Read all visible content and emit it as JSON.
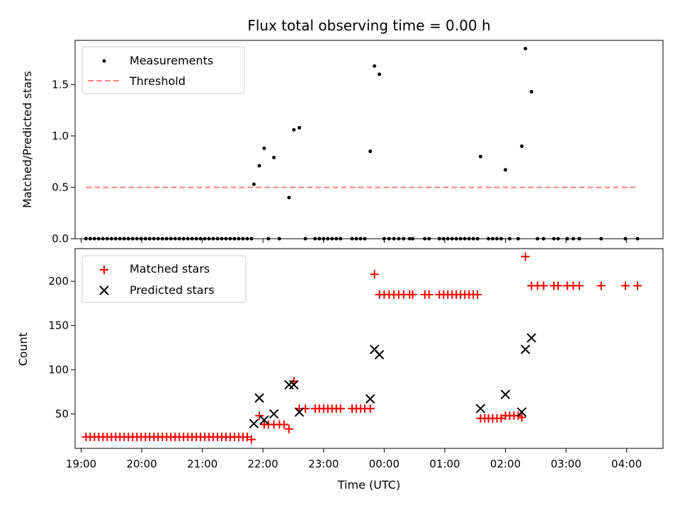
{
  "figure": {
    "title": "Flux total observing time = 0.00 h",
    "xlabel": "Time (UTC)"
  },
  "chart_data": [
    {
      "type": "scatter",
      "panel": "top",
      "ylabel": "Matched/Predicted stars",
      "xlim": [
        18.9,
        28.6
      ],
      "ylim": [
        0,
        1.93
      ],
      "yticks": [
        0.0,
        0.5,
        1.0,
        1.5
      ],
      "ytick_labels": [
        "0.0",
        "0.5",
        "1.0",
        "1.5"
      ],
      "xticks": [
        19,
        20,
        21,
        22,
        23,
        24,
        25,
        26,
        27,
        28
      ],
      "legend_position": "top-left",
      "grid": false,
      "series": [
        {
          "name": "Measurements",
          "marker": "dot",
          "color": "#000000",
          "points": [
            [
              19.08,
              0
            ],
            [
              19.15,
              0
            ],
            [
              19.22,
              0
            ],
            [
              19.29,
              0
            ],
            [
              19.36,
              0
            ],
            [
              19.43,
              0
            ],
            [
              19.5,
              0
            ],
            [
              19.57,
              0
            ],
            [
              19.64,
              0
            ],
            [
              19.71,
              0
            ],
            [
              19.78,
              0
            ],
            [
              19.85,
              0
            ],
            [
              19.92,
              0
            ],
            [
              19.99,
              0
            ],
            [
              20.06,
              0
            ],
            [
              20.13,
              0
            ],
            [
              20.2,
              0
            ],
            [
              20.27,
              0
            ],
            [
              20.34,
              0
            ],
            [
              20.41,
              0
            ],
            [
              20.48,
              0
            ],
            [
              20.55,
              0
            ],
            [
              20.62,
              0
            ],
            [
              20.69,
              0
            ],
            [
              20.76,
              0
            ],
            [
              20.83,
              0
            ],
            [
              20.9,
              0
            ],
            [
              20.97,
              0
            ],
            [
              21.04,
              0
            ],
            [
              21.11,
              0
            ],
            [
              21.18,
              0
            ],
            [
              21.25,
              0
            ],
            [
              21.32,
              0
            ],
            [
              21.39,
              0
            ],
            [
              21.46,
              0
            ],
            [
              21.53,
              0
            ],
            [
              21.6,
              0
            ],
            [
              21.67,
              0
            ],
            [
              21.74,
              0
            ],
            [
              21.81,
              0
            ],
            [
              21.85,
              0.53
            ],
            [
              21.94,
              0.71
            ],
            [
              22.02,
              0.88
            ],
            [
              22.09,
              0
            ],
            [
              22.18,
              0.79
            ],
            [
              22.27,
              0
            ],
            [
              22.43,
              0.4
            ],
            [
              22.51,
              1.06
            ],
            [
              22.6,
              1.08
            ],
            [
              22.7,
              0
            ],
            [
              22.86,
              0
            ],
            [
              22.93,
              0
            ],
            [
              23.0,
              0
            ],
            [
              23.07,
              0
            ],
            [
              23.14,
              0
            ],
            [
              23.21,
              0
            ],
            [
              23.28,
              0
            ],
            [
              23.47,
              0
            ],
            [
              23.54,
              0
            ],
            [
              23.61,
              0
            ],
            [
              23.68,
              0
            ],
            [
              23.77,
              0.85
            ],
            [
              23.84,
              1.68
            ],
            [
              23.92,
              1.6
            ],
            [
              24.0,
              0
            ],
            [
              24.08,
              0
            ],
            [
              24.16,
              0
            ],
            [
              24.24,
              0
            ],
            [
              24.32,
              0
            ],
            [
              24.42,
              0
            ],
            [
              24.47,
              0
            ],
            [
              24.67,
              0
            ],
            [
              24.74,
              0
            ],
            [
              24.91,
              0
            ],
            [
              24.98,
              0
            ],
            [
              25.05,
              0
            ],
            [
              25.12,
              0
            ],
            [
              25.19,
              0
            ],
            [
              25.26,
              0
            ],
            [
              25.33,
              0
            ],
            [
              25.4,
              0
            ],
            [
              25.47,
              0
            ],
            [
              25.54,
              0
            ],
            [
              25.59,
              0.8
            ],
            [
              25.72,
              0
            ],
            [
              25.79,
              0
            ],
            [
              25.86,
              0
            ],
            [
              25.93,
              0
            ],
            [
              26.0,
              0.67
            ],
            [
              26.07,
              0
            ],
            [
              26.21,
              0
            ],
            [
              26.27,
              0.9
            ],
            [
              26.33,
              1.85
            ],
            [
              26.43,
              1.43
            ],
            [
              26.53,
              0
            ],
            [
              26.63,
              0
            ],
            [
              26.8,
              0
            ],
            [
              26.87,
              0
            ],
            [
              27.02,
              0
            ],
            [
              27.12,
              0
            ],
            [
              27.22,
              0
            ],
            [
              27.58,
              0
            ],
            [
              27.98,
              0
            ],
            [
              28.18,
              0
            ]
          ]
        },
        {
          "name": "Threshold",
          "marker": "dashed-line",
          "color": "#ff8080",
          "points": [
            [
              19.08,
              0.5
            ],
            [
              28.18,
              0.5
            ]
          ]
        }
      ]
    },
    {
      "type": "scatter",
      "panel": "bottom",
      "ylabel": "Count",
      "xlim": [
        18.9,
        28.6
      ],
      "ylim": [
        11,
        237
      ],
      "yticks": [
        50,
        100,
        150,
        200
      ],
      "ytick_labels": [
        "50",
        "100",
        "150",
        "200"
      ],
      "xticks": [
        19,
        20,
        21,
        22,
        23,
        24,
        25,
        26,
        27,
        28
      ],
      "xtick_labels": [
        "19:00",
        "20:00",
        "21:00",
        "22:00",
        "23:00",
        "00:00",
        "01:00",
        "02:00",
        "03:00",
        "04:00"
      ],
      "legend_position": "top-left",
      "grid": false,
      "series": [
        {
          "name": "Matched stars",
          "marker": "plus",
          "color": "#ff0000",
          "points": [
            [
              19.08,
              24
            ],
            [
              19.15,
              24
            ],
            [
              19.22,
              24
            ],
            [
              19.29,
              24
            ],
            [
              19.36,
              24
            ],
            [
              19.43,
              24
            ],
            [
              19.5,
              24
            ],
            [
              19.57,
              24
            ],
            [
              19.64,
              24
            ],
            [
              19.71,
              24
            ],
            [
              19.78,
              24
            ],
            [
              19.85,
              24
            ],
            [
              19.92,
              24
            ],
            [
              19.99,
              24
            ],
            [
              20.06,
              24
            ],
            [
              20.13,
              24
            ],
            [
              20.2,
              24
            ],
            [
              20.27,
              24
            ],
            [
              20.34,
              24
            ],
            [
              20.41,
              24
            ],
            [
              20.48,
              24
            ],
            [
              20.55,
              24
            ],
            [
              20.62,
              24
            ],
            [
              20.69,
              24
            ],
            [
              20.76,
              24
            ],
            [
              20.83,
              24
            ],
            [
              20.9,
              24
            ],
            [
              20.97,
              24
            ],
            [
              21.04,
              24
            ],
            [
              21.11,
              24
            ],
            [
              21.18,
              24
            ],
            [
              21.25,
              24
            ],
            [
              21.32,
              24
            ],
            [
              21.39,
              24
            ],
            [
              21.46,
              24
            ],
            [
              21.53,
              24
            ],
            [
              21.6,
              24
            ],
            [
              21.67,
              24
            ],
            [
              21.74,
              24
            ],
            [
              21.81,
              21
            ],
            [
              21.94,
              48
            ],
            [
              22.02,
              38
            ],
            [
              22.09,
              38
            ],
            [
              22.18,
              38
            ],
            [
              22.27,
              38
            ],
            [
              22.35,
              38
            ],
            [
              22.43,
              33
            ],
            [
              22.51,
              87
            ],
            [
              22.6,
              56
            ],
            [
              22.7,
              56
            ],
            [
              22.86,
              56
            ],
            [
              22.93,
              56
            ],
            [
              23.0,
              56
            ],
            [
              23.07,
              56
            ],
            [
              23.14,
              56
            ],
            [
              23.21,
              56
            ],
            [
              23.28,
              56
            ],
            [
              23.47,
              56
            ],
            [
              23.54,
              56
            ],
            [
              23.61,
              56
            ],
            [
              23.68,
              56
            ],
            [
              23.77,
              56
            ],
            [
              23.84,
              208
            ],
            [
              23.92,
              185
            ],
            [
              24.0,
              185
            ],
            [
              24.08,
              185
            ],
            [
              24.16,
              185
            ],
            [
              24.24,
              185
            ],
            [
              24.32,
              185
            ],
            [
              24.42,
              185
            ],
            [
              24.47,
              185
            ],
            [
              24.67,
              185
            ],
            [
              24.74,
              185
            ],
            [
              24.91,
              185
            ],
            [
              24.98,
              185
            ],
            [
              25.05,
              185
            ],
            [
              25.12,
              185
            ],
            [
              25.19,
              185
            ],
            [
              25.26,
              185
            ],
            [
              25.33,
              185
            ],
            [
              25.4,
              185
            ],
            [
              25.47,
              185
            ],
            [
              25.54,
              185
            ],
            [
              25.59,
              45
            ],
            [
              25.66,
              45
            ],
            [
              25.72,
              45
            ],
            [
              25.79,
              45
            ],
            [
              25.86,
              45
            ],
            [
              25.93,
              45
            ],
            [
              26.0,
              48
            ],
            [
              26.07,
              48
            ],
            [
              26.14,
              48
            ],
            [
              26.21,
              48
            ],
            [
              26.27,
              46
            ],
            [
              26.33,
              228
            ],
            [
              26.43,
              195
            ],
            [
              26.53,
              195
            ],
            [
              26.63,
              195
            ],
            [
              26.8,
              195
            ],
            [
              26.87,
              195
            ],
            [
              27.02,
              195
            ],
            [
              27.12,
              195
            ],
            [
              27.22,
              195
            ],
            [
              27.58,
              195
            ],
            [
              27.98,
              195
            ],
            [
              28.18,
              195
            ]
          ]
        },
        {
          "name": "Predicted stars",
          "marker": "x",
          "color": "#000000",
          "points": [
            [
              21.85,
              39
            ],
            [
              21.94,
              68
            ],
            [
              22.02,
              43
            ],
            [
              22.18,
              50
            ],
            [
              22.43,
              83
            ],
            [
              22.51,
              83
            ],
            [
              22.6,
              52
            ],
            [
              23.77,
              67
            ],
            [
              23.84,
              123
            ],
            [
              23.92,
              117
            ],
            [
              25.59,
              56
            ],
            [
              26.0,
              72
            ],
            [
              26.27,
              52
            ],
            [
              26.33,
              123
            ],
            [
              26.43,
              136
            ]
          ]
        }
      ]
    }
  ]
}
